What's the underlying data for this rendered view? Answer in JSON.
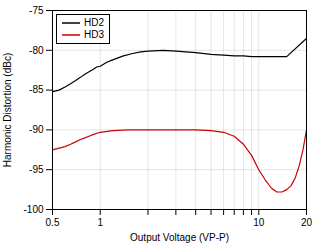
{
  "chart_data": {
    "type": "line",
    "xlabel": "Output Voltage (VP-P)",
    "ylabel": "Harmonic Distortion (dBc)",
    "log": "x",
    "grid": true,
    "legend": "upper left",
    "xlim": [
      0.5,
      20
    ],
    "ylim": [
      -100,
      -75
    ],
    "xticks": [
      0.5,
      1,
      {
        "value": 2,
        "label": null
      },
      {
        "value": 3,
        "label": null
      },
      {
        "value": 4,
        "label": null
      },
      {
        "value": 5,
        "label": null
      },
      {
        "value": 6,
        "label": null
      },
      {
        "value": 7,
        "label": null
      },
      {
        "value": 8,
        "label": null
      },
      {
        "value": 9,
        "label": null
      },
      10,
      20
    ],
    "yticks": [
      -100,
      -95,
      -90,
      -85,
      -80,
      -75
    ],
    "series": [
      {
        "name": "HD2",
        "color": "#000000",
        "x": [
          0.5,
          0.55,
          0.6,
          0.65,
          0.7,
          0.75,
          0.8,
          0.85,
          0.9,
          0.95,
          1.0,
          1.1,
          1.2,
          1.4,
          1.6,
          1.8,
          2.0,
          2.5,
          3.0,
          4.0,
          5.0,
          6.0,
          7.0,
          8.0,
          9.0,
          10.0,
          12.0,
          15.0,
          20.0
        ],
        "values": [
          -85.2,
          -85.0,
          -84.6,
          -84.2,
          -83.8,
          -83.4,
          -83.0,
          -82.7,
          -82.4,
          -82.1,
          -82.0,
          -81.5,
          -81.2,
          -80.7,
          -80.4,
          -80.2,
          -80.1,
          -80.0,
          -80.1,
          -80.3,
          -80.5,
          -80.6,
          -80.7,
          -80.7,
          -80.8,
          -80.8,
          -80.8,
          -80.8,
          -78.5
        ]
      },
      {
        "name": "HD3",
        "color": "#cc0000",
        "x": [
          0.5,
          0.55,
          0.6,
          0.65,
          0.7,
          0.75,
          0.8,
          0.85,
          0.9,
          1.0,
          1.2,
          1.5,
          2.0,
          2.5,
          3.0,
          4.0,
          5.0,
          6.0,
          7.0,
          8.0,
          9.0,
          10.0,
          11.0,
          12.0,
          13.0,
          14.0,
          15.0,
          16.0,
          17.0,
          18.0,
          19.0,
          20.0
        ],
        "values": [
          -92.5,
          -92.3,
          -92.1,
          -91.8,
          -91.5,
          -91.2,
          -91.0,
          -90.8,
          -90.6,
          -90.3,
          -90.1,
          -90.0,
          -90.0,
          -90.0,
          -90.0,
          -90.0,
          -90.1,
          -90.3,
          -90.8,
          -91.8,
          -93.2,
          -95.0,
          -96.3,
          -97.3,
          -97.8,
          -97.8,
          -97.5,
          -97.0,
          -96.0,
          -94.5,
          -92.5,
          -90.0
        ]
      }
    ]
  }
}
